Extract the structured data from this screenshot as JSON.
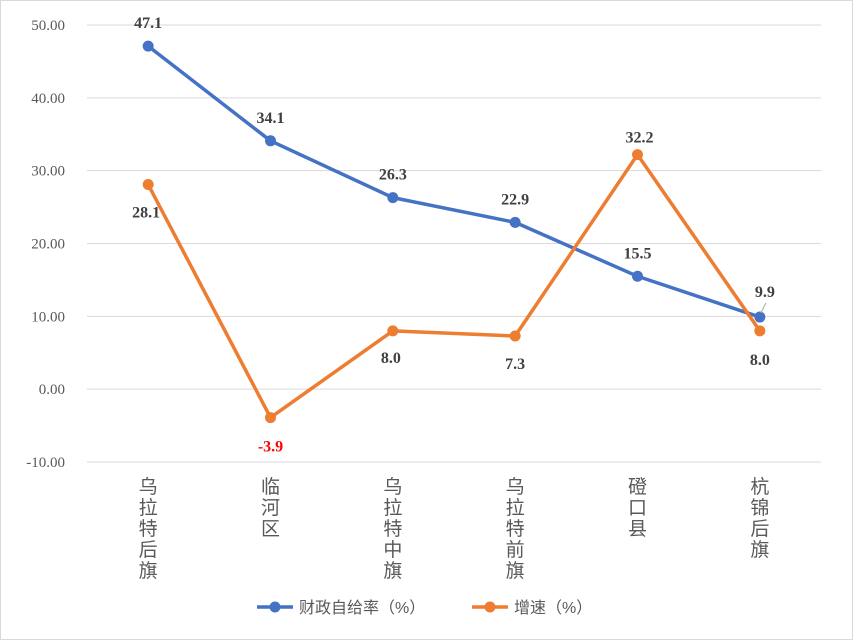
{
  "chart_data": {
    "type": "line",
    "categories": [
      "乌拉特后旗",
      "临河区",
      "乌拉特中旗",
      "乌拉特前旗",
      "磴口县",
      "杭锦后旗"
    ],
    "series": [
      {
        "name": "财政自给率（%）",
        "color": "#4472c4",
        "values": [
          47.1,
          34.1,
          26.3,
          22.9,
          15.5,
          9.9
        ],
        "labels": [
          "47.1",
          "34.1",
          "26.3",
          "22.9",
          "15.5",
          "9.9"
        ]
      },
      {
        "name": "增速（%）",
        "color": "#ed7d31",
        "values": [
          28.1,
          -3.9,
          8.0,
          7.3,
          32.2,
          8.0
        ],
        "labels": [
          "28.1",
          "-3.9",
          "8.0",
          "7.3",
          "32.2",
          "8.0"
        ]
      }
    ],
    "y_ticks": [
      "50.00",
      "40.00",
      "30.00",
      "20.00",
      "10.00",
      "0.00",
      "-10.00"
    ],
    "ylim": [
      -10,
      50
    ],
    "grid": true,
    "legend_position": "bottom",
    "negative_label_color": "#ff0000",
    "data_label_color": "#404040"
  }
}
